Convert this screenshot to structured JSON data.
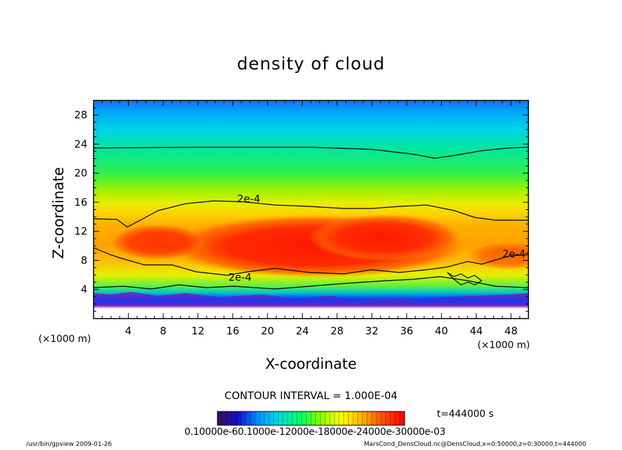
{
  "chart_data": {
    "type": "heatmap",
    "title": "density of cloud",
    "xlabel": "X-coordinate",
    "ylabel": "Z-coordinate",
    "x_unit_label": "(×1000 m)",
    "y_unit_label": "(×1000 m)",
    "xlim": [
      0,
      50
    ],
    "ylim": [
      0,
      30
    ],
    "x_ticks": [
      4,
      8,
      12,
      16,
      20,
      24,
      28,
      32,
      36,
      40,
      44,
      48
    ],
    "y_ticks": [
      4,
      8,
      12,
      16,
      20,
      24,
      28
    ],
    "contour_labels": [
      {
        "text": "2e-4",
        "x": 16.5,
        "y": 16.0
      },
      {
        "text": "2e-4",
        "x": 15.5,
        "y": 5.2
      },
      {
        "text": "2e-4",
        "x": 47.0,
        "y": 8.4
      }
    ],
    "contour_interval": "CONTOUR INTERVAL = 1.000E-04",
    "time": "t=444000 s",
    "colorbar_labels": "0.10000e-60.1000e-12000e-18000e-24000e-30000e-03",
    "colormap": [
      "#3a0f5c",
      "#0000ff",
      "#0096ff",
      "#00dcdc",
      "#00ff64",
      "#8cff00",
      "#ffff00",
      "#ffb400",
      "#ff5000",
      "#ff0000"
    ]
  },
  "footer": {
    "left": "/usr/bin/gpview   2009-01-26",
    "right": "MarsCond_DensCloud.nc@DensCloud,x=0:50000,z=0:30000,t=444000"
  }
}
